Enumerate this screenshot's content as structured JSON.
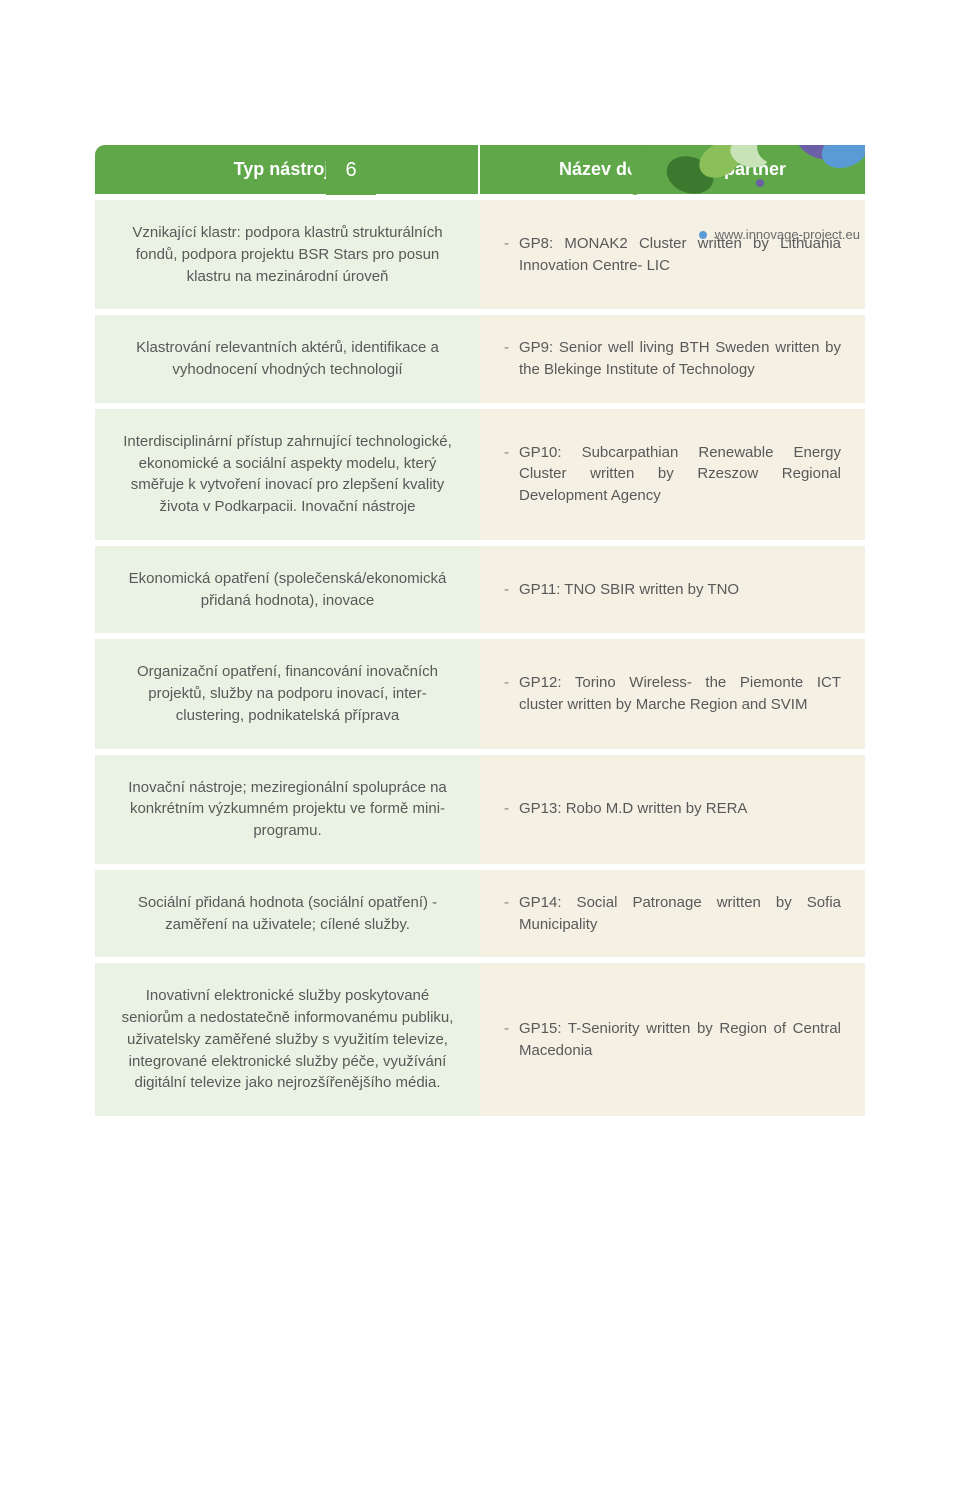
{
  "page_number": "6",
  "url": "www.innovage-project.eu",
  "colors": {
    "green": "#5fa749",
    "left_bg": "#eaf3e3",
    "right_bg": "#f5f0e4",
    "text": "#595959",
    "deco_green1": "#5fa749",
    "deco_green2": "#8bbf5a",
    "deco_green3": "#3b7a2e",
    "deco_blue": "#5b9bd5",
    "deco_violet": "#6b5fa7",
    "deco_light": "#c9e3b8"
  },
  "header": {
    "left": "Typ nástroje",
    "right": "Název dobré praxe/partner"
  },
  "rows": [
    {
      "left": "Vznikající klastr: podpora klastrů strukturálních fondů, podpora projektu BSR Stars pro posun klastru na mezinárodní úroveň",
      "right": "GP8: MONAK2 Cluster written by Lithuania Innovation Centre- LIC"
    },
    {
      "left": "Klastrování relevantních aktérů, identifikace a vyhodnocení vhodných technologií",
      "right": "GP9: Senior well living BTH Sweden written by the Blekinge Institute of Technology"
    },
    {
      "left": "Interdisciplinární přístup zahrnující technologické, ekonomické a sociální aspekty modelu, který směřuje k vytvoření inovací pro zlepšení kvality života v Podkarpacii. Inovační nástroje",
      "right": "GP10: Subcarpathian Renewable Energy Cluster written by Rzeszow Regional Development Agency"
    },
    {
      "left": "Ekonomická opatření (společenská/ekonomická přidaná hodnota), inovace",
      "right": "GP11: TNO SBIR written by TNO"
    },
    {
      "left": "Organizační opatření, financování inovačních projektů, služby na podporu inovací, inter-clustering, podnikatelská příprava",
      "right": "GP12: Torino Wireless- the Piemonte ICT cluster written by Marche Region and SVIM"
    },
    {
      "left": "Inovační nástroje; meziregionální spolupráce na konkrétním výzkumném projektu ve formě mini-programu.",
      "right": "GP13: Robo M.D written by RERA"
    },
    {
      "left": "Sociální přidaná hodnota (sociální opatření) -zaměření na uživatele; cílené služby.",
      "right": "GP14: Social Patronage written by Sofia Municipality"
    },
    {
      "left": "Inovativní elektronické služby poskytované seniorům a nedostatečně informovanému publiku, uživatelsky zaměřené služby s využitím televize, integrované elektronické služby péče, využívání digitální televize jako nejrozšířenějšího média.",
      "right": "GP15: T-Seniority written by Region of Central Macedonia"
    }
  ]
}
